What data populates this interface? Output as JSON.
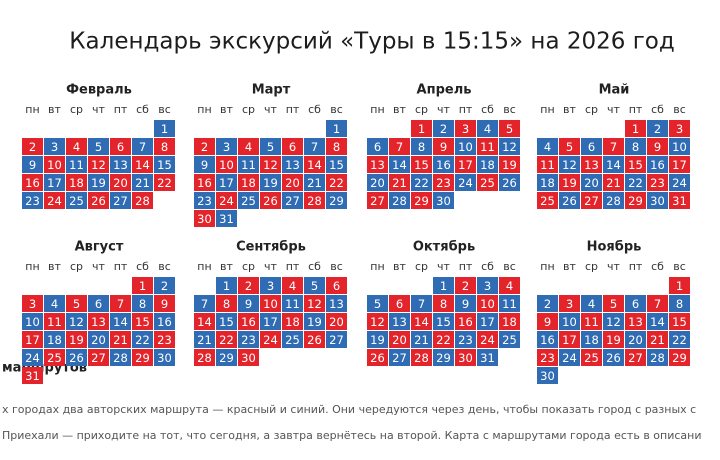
{
  "header": {
    "title": "Календарь экскурсий «Туры в 15:15» на 2026 год"
  },
  "weekdays": [
    "пн",
    "вт",
    "ср",
    "чт",
    "пт",
    "сб",
    "вс"
  ],
  "colors": {
    "red": "#e3242b",
    "blue": "#2f6cb3"
  },
  "months": [
    {
      "name": "Февраль",
      "first": "blue",
      "weeks": [
        [
          null,
          null,
          null,
          null,
          null,
          null,
          1
        ],
        [
          2,
          3,
          4,
          5,
          6,
          7,
          8
        ],
        [
          9,
          10,
          11,
          12,
          13,
          14,
          15
        ],
        [
          16,
          17,
          18,
          19,
          20,
          21,
          22
        ],
        [
          23,
          24,
          25,
          26,
          27,
          28,
          null
        ]
      ]
    },
    {
      "name": "Март",
      "first": "blue",
      "weeks": [
        [
          null,
          null,
          null,
          null,
          null,
          null,
          1
        ],
        [
          2,
          3,
          4,
          5,
          6,
          7,
          8
        ],
        [
          9,
          10,
          11,
          12,
          13,
          14,
          15
        ],
        [
          16,
          17,
          18,
          19,
          20,
          21,
          22
        ],
        [
          23,
          24,
          25,
          26,
          27,
          28,
          29
        ],
        [
          30,
          31
        ]
      ]
    },
    {
      "name": "Апрель",
      "first": "red",
      "weeks": [
        [
          null,
          null,
          1,
          2,
          3,
          4,
          5
        ],
        [
          6,
          7,
          8,
          9,
          10,
          11,
          12
        ],
        [
          13,
          14,
          15,
          16,
          17,
          18,
          19
        ],
        [
          20,
          21,
          22,
          23,
          24,
          25,
          26
        ],
        [
          27,
          28,
          29,
          30
        ]
      ]
    },
    {
      "name": "Май",
      "first": "red",
      "weeks": [
        [
          null,
          null,
          null,
          null,
          1,
          2,
          3
        ],
        [
          4,
          5,
          6,
          7,
          8,
          9,
          10
        ],
        [
          11,
          12,
          13,
          14,
          15,
          16,
          17
        ],
        [
          18,
          19,
          20,
          21,
          22,
          23,
          24
        ],
        [
          25,
          26,
          27,
          28,
          29,
          30,
          31
        ]
      ]
    },
    {
      "name": "Август",
      "first": "red",
      "weeks": [
        [
          null,
          null,
          null,
          null,
          null,
          1,
          2
        ],
        [
          3,
          4,
          5,
          6,
          7,
          8,
          9
        ],
        [
          10,
          11,
          12,
          13,
          14,
          15,
          16
        ],
        [
          17,
          18,
          19,
          20,
          21,
          22,
          23
        ],
        [
          24,
          25,
          26,
          27,
          28,
          29,
          30
        ],
        [
          31
        ]
      ]
    },
    {
      "name": "Сентябрь",
      "first": "blue",
      "weeks": [
        [
          null,
          1,
          2,
          3,
          4,
          5,
          6
        ],
        [
          7,
          8,
          9,
          10,
          11,
          12,
          13
        ],
        [
          14,
          15,
          16,
          17,
          18,
          19,
          20
        ],
        [
          21,
          22,
          23,
          24,
          25,
          26,
          27
        ],
        [
          28,
          29,
          30
        ]
      ]
    },
    {
      "name": "Октябрь",
      "first": "blue",
      "weeks": [
        [
          null,
          null,
          null,
          1,
          2,
          3,
          4
        ],
        [
          5,
          6,
          7,
          8,
          9,
          10,
          11
        ],
        [
          12,
          13,
          14,
          15,
          16,
          17,
          18
        ],
        [
          19,
          20,
          21,
          22,
          23,
          24,
          25
        ],
        [
          26,
          27,
          28,
          29,
          30,
          31
        ]
      ]
    },
    {
      "name": "Ноябрь",
      "first": "red",
      "weeks": [
        [
          null,
          null,
          null,
          null,
          null,
          null,
          1
        ],
        [
          2,
          3,
          4,
          5,
          6,
          7,
          8
        ],
        [
          9,
          10,
          11,
          12,
          13,
          14,
          15
        ],
        [
          16,
          17,
          18,
          19,
          20,
          21,
          22
        ],
        [
          23,
          24,
          25,
          26,
          27,
          28,
          29
        ],
        [
          30
        ]
      ]
    }
  ],
  "footer": {
    "heading": "маршрутов",
    "lines": [
      "х городах два авторских маршрута — красный и синий. Они чередуются через день, чтобы показать город с разных с",
      "Приехали — приходите на тот, что сегодня, а завтра вернётесь на второй. Карта с маршрутами города есть в описани"
    ]
  }
}
